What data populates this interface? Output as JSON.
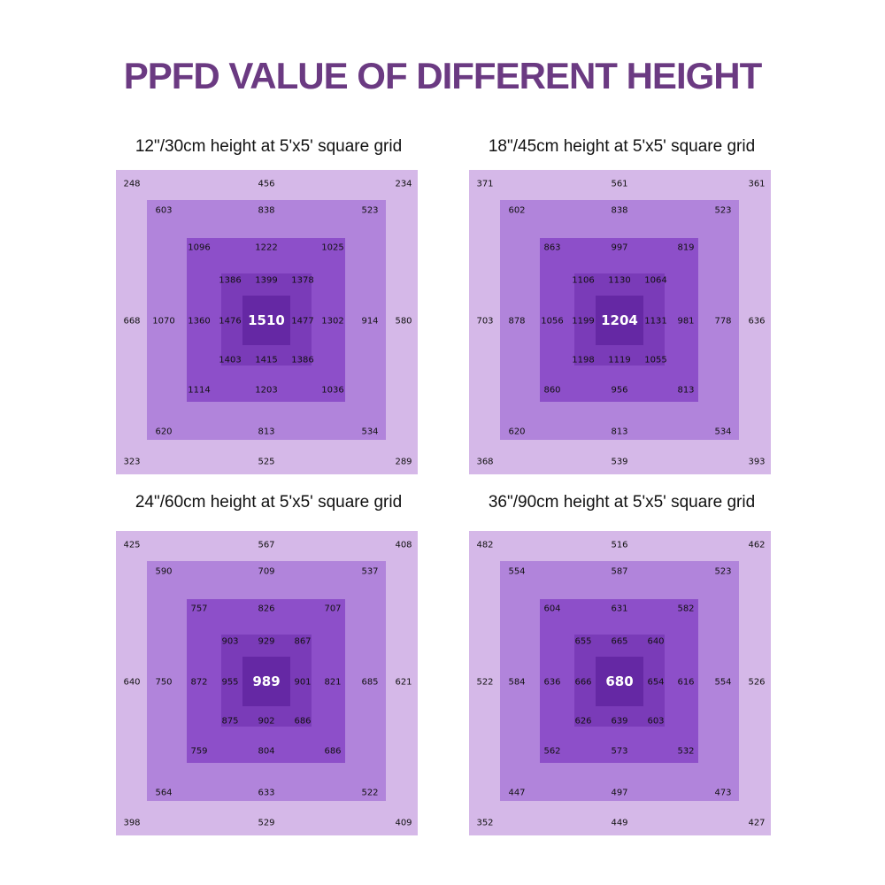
{
  "title": "PPFD VALUE OF DIFFERENT HEIGHT",
  "colors": {
    "title": "#6b3a82",
    "ring1": "#d5b8e8",
    "ring2": "#b184db",
    "ring3": "#8d4fc9",
    "ring4": "#7a3bb8",
    "ring5": "#6528a4"
  },
  "chart_data": [
    {
      "type": "heatmap",
      "title": "12\"/30cm height at 5'x5' square grid",
      "ring1": {
        "top": [
          "248",
          "456",
          "234"
        ],
        "middle": [
          "668",
          "580"
        ],
        "bottom": [
          "323",
          "525",
          "289"
        ]
      },
      "ring2": {
        "top": [
          "603",
          "838",
          "523"
        ],
        "middle": [
          "1070",
          "914"
        ],
        "bottom": [
          "620",
          "813",
          "534"
        ]
      },
      "ring3": {
        "top": [
          "1096",
          "1222",
          "1025"
        ],
        "middle": [
          "1360",
          "1302"
        ],
        "bottom": [
          "1114",
          "1203",
          "1036"
        ]
      },
      "ring4": {
        "top": [
          "1386",
          "1399",
          "1378"
        ],
        "middle": [
          "1476",
          "1477"
        ],
        "bottom": [
          "1403",
          "1415",
          "1386"
        ]
      },
      "center": "1510"
    },
    {
      "type": "heatmap",
      "title": "18\"/45cm height at 5'x5' square grid",
      "ring1": {
        "top": [
          "371",
          "561",
          "361"
        ],
        "middle": [
          "703",
          "636"
        ],
        "bottom": [
          "368",
          "539",
          "393"
        ]
      },
      "ring2": {
        "top": [
          "602",
          "838",
          "523"
        ],
        "middle": [
          "878",
          "778"
        ],
        "bottom": [
          "620",
          "813",
          "534"
        ]
      },
      "ring3": {
        "top": [
          "863",
          "997",
          "819"
        ],
        "middle": [
          "1056",
          "981"
        ],
        "bottom": [
          "860",
          "956",
          "813"
        ]
      },
      "ring4": {
        "top": [
          "1106",
          "1130",
          "1064"
        ],
        "middle": [
          "1199",
          "1131"
        ],
        "bottom": [
          "1198",
          "1119",
          "1055"
        ]
      },
      "center": "1204"
    },
    {
      "type": "heatmap",
      "title": "24\"/60cm height at 5'x5' square grid",
      "ring1": {
        "top": [
          "425",
          "567",
          "408"
        ],
        "middle": [
          "640",
          "621"
        ],
        "bottom": [
          "398",
          "529",
          "409"
        ]
      },
      "ring2": {
        "top": [
          "590",
          "709",
          "537"
        ],
        "middle": [
          "750",
          "685"
        ],
        "bottom": [
          "564",
          "633",
          "522"
        ]
      },
      "ring3": {
        "top": [
          "757",
          "826",
          "707"
        ],
        "middle": [
          "872",
          "821"
        ],
        "bottom": [
          "759",
          "804",
          "686"
        ]
      },
      "ring4": {
        "top": [
          "903",
          "929",
          "867"
        ],
        "middle": [
          "955",
          "901"
        ],
        "bottom": [
          "875",
          "902",
          "686"
        ]
      },
      "center": "989"
    },
    {
      "type": "heatmap",
      "title": "36\"/90cm height at 5'x5' square grid",
      "ring1": {
        "top": [
          "482",
          "516",
          "462"
        ],
        "middle": [
          "522",
          "526"
        ],
        "bottom": [
          "352",
          "449",
          "427"
        ]
      },
      "ring2": {
        "top": [
          "554",
          "587",
          "523"
        ],
        "middle": [
          "584",
          "554"
        ],
        "bottom": [
          "447",
          "497",
          "473"
        ]
      },
      "ring3": {
        "top": [
          "604",
          "631",
          "582"
        ],
        "middle": [
          "636",
          "616"
        ],
        "bottom": [
          "562",
          "573",
          "532"
        ]
      },
      "ring4": {
        "top": [
          "655",
          "665",
          "640"
        ],
        "middle": [
          "666",
          "654"
        ],
        "bottom": [
          "626",
          "639",
          "603"
        ]
      },
      "center": "680"
    }
  ]
}
